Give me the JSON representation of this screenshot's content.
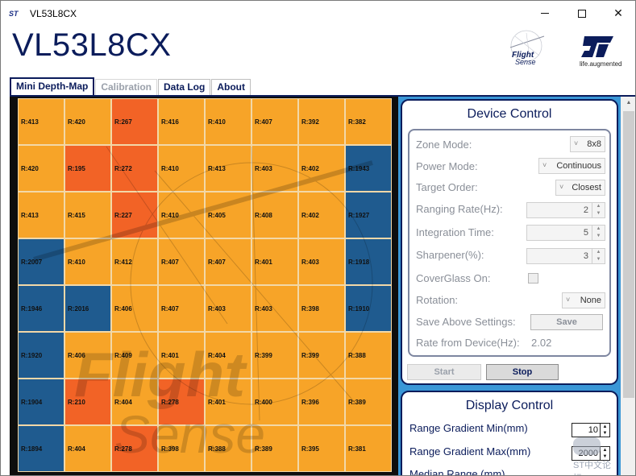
{
  "window": {
    "title": "VL53L8CX",
    "app_icon": "st-logo-icon"
  },
  "header": {
    "app_title": "VL53L8CX",
    "flightsense_logo_text_1": "Flight",
    "flightsense_logo_text_2": "Sense",
    "st_tagline": "life.augmented"
  },
  "tabs": [
    {
      "label": "Mini Depth-Map",
      "active": true,
      "enabled": true
    },
    {
      "label": "Calibration",
      "active": false,
      "enabled": false
    },
    {
      "label": "Data Log",
      "active": false,
      "enabled": true
    },
    {
      "label": "About",
      "active": false,
      "enabled": true
    }
  ],
  "depth_map": {
    "cells": [
      [
        "R:413",
        "R:420",
        "R:267",
        "R:416",
        "R:410",
        "R:407",
        "R:392",
        "R:382"
      ],
      [
        "R:420",
        "R:195",
        "R:272",
        "R:410",
        "R:413",
        "R:403",
        "R:402",
        "R:1943"
      ],
      [
        "R:413",
        "R:415",
        "R:227",
        "R:410",
        "R:405",
        "R:408",
        "R:402",
        "R:1927"
      ],
      [
        "R:2007",
        "R:410",
        "R:412",
        "R:407",
        "R:407",
        "R:401",
        "R:403",
        "R:1918"
      ],
      [
        "R:1946",
        "R:2016",
        "R:406",
        "R:407",
        "R:403",
        "R:403",
        "R:398",
        "R:1910"
      ],
      [
        "R:1920",
        "R:406",
        "R:409",
        "R:401",
        "R:404",
        "R:399",
        "R:399",
        "R:388"
      ],
      [
        "R:1904",
        "R:210",
        "R:404",
        "R:278",
        "R:401",
        "R:400",
        "R:396",
        "R:389"
      ],
      [
        "R:1894",
        "R:404",
        "R:278",
        "R:398",
        "R:388",
        "R:389",
        "R:395",
        "R:381"
      ]
    ],
    "colors": {
      "near": "#f26326",
      "mid": "#f7a428",
      "far": "#1f5b8f"
    }
  },
  "device_control": {
    "title": "Device Control",
    "zone_mode": {
      "label": "Zone Mode:",
      "value": "8x8"
    },
    "power_mode": {
      "label": "Power Mode:",
      "value": "Continuous"
    },
    "target_order": {
      "label": "Target Order:",
      "value": "Closest"
    },
    "ranging_rate": {
      "label": "Ranging Rate(Hz):",
      "value": "2"
    },
    "integration_time": {
      "label": "Integration Time:",
      "value": "5"
    },
    "sharpener": {
      "label": "Sharpener(%):",
      "value": "3"
    },
    "coverglass": {
      "label": "CoverGlass On:",
      "checked": false
    },
    "rotation": {
      "label": "Rotation:",
      "value": "None"
    },
    "save_settings": {
      "label": "Save Above Settings:",
      "button": "Save"
    },
    "rate_from_device": {
      "label": "Rate from Device(Hz):",
      "value": "2.02"
    },
    "start_button": "Start",
    "stop_button": "Stop"
  },
  "display_control": {
    "title": "Display Control",
    "range_min": {
      "label": "Range Gradient Min(mm)",
      "value": "10"
    },
    "range_max": {
      "label": "Range Gradient Max(mm)",
      "value": "2000"
    },
    "median_range_partial": "Median Range (mm)"
  },
  "forum_mark": "ST中文论坛",
  "accent": "#0b1c5b",
  "panel_blue": "#3a97d7"
}
